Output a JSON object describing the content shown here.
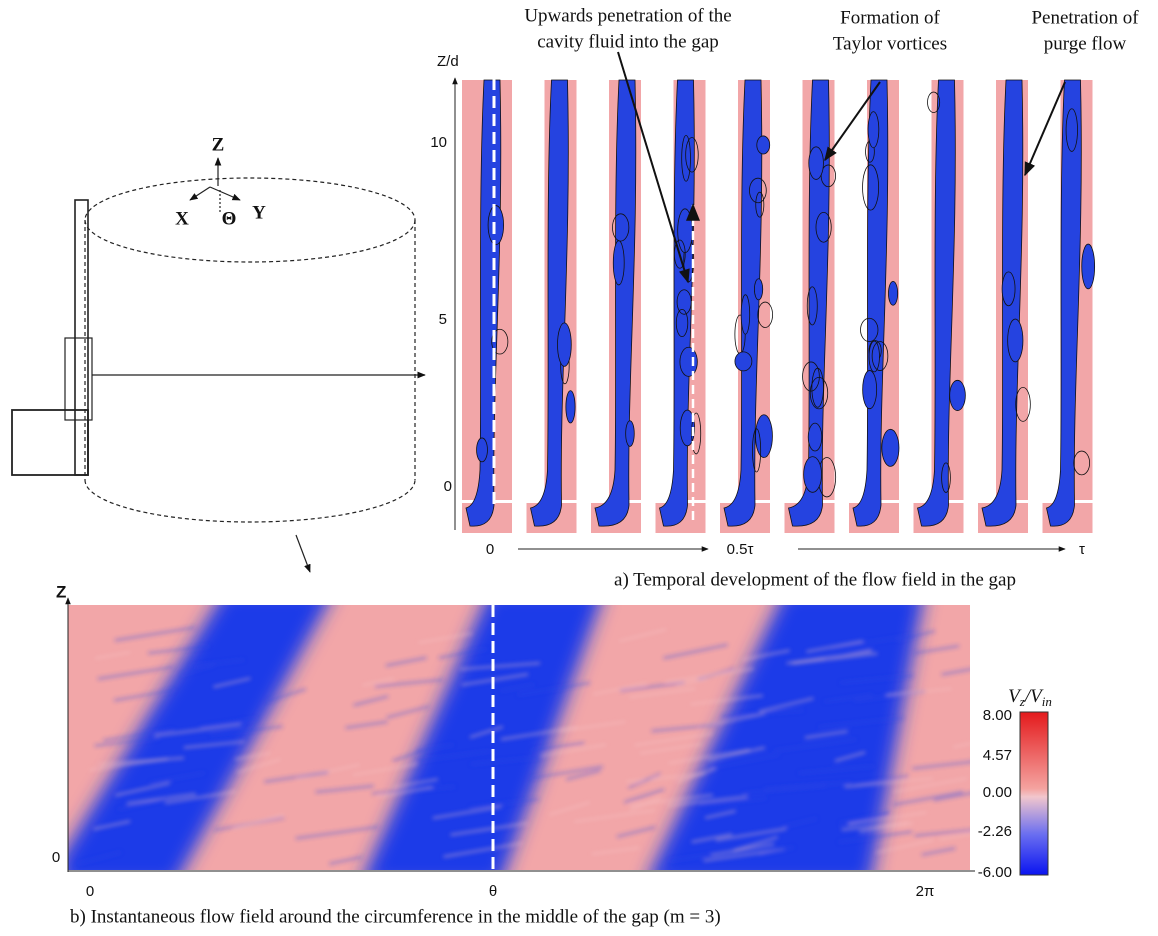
{
  "panel_a": {
    "axis_label": "Z/d",
    "ticks": [
      "10",
      "5",
      "0"
    ],
    "time_labels": [
      "0",
      "0.5τ",
      "τ"
    ],
    "annotations": [
      [
        "Upwards penetration of the",
        "cavity fluid into the gap"
      ],
      [
        "Formation of",
        "Taylor vortices"
      ],
      [
        "Penetration of",
        "purge flow"
      ]
    ],
    "caption": "a) Temporal development of the flow field in the gap"
  },
  "sketch": {
    "axes": [
      "Z",
      "X",
      "Θ",
      "Y"
    ]
  },
  "panel_b": {
    "axis_label": "Z",
    "y_label": "0",
    "x_labels": [
      "0",
      "θ",
      "2π"
    ],
    "caption": "b) Instantaneous flow field around the circumference in the middle of the gap (m = 3)"
  },
  "colorbar": {
    "title": [
      "V",
      "z",
      "/V",
      "in"
    ],
    "labels": [
      "8.00",
      "4.57",
      "0.00",
      "-2.26",
      "-6.00"
    ]
  }
}
